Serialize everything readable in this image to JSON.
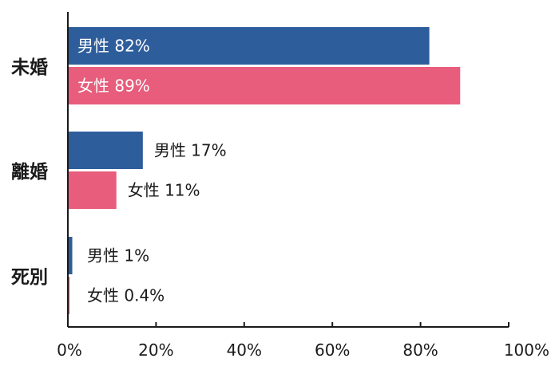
{
  "chart_data": {
    "type": "bar",
    "orientation": "horizontal",
    "categories": [
      "未婚",
      "離婚",
      "死別"
    ],
    "series": [
      {
        "name": "男性",
        "values": [
          82,
          17,
          1
        ],
        "color": "#2e5d9c",
        "labels": [
          "男性 82%",
          "男性 17%",
          "男性 1%"
        ]
      },
      {
        "name": "女性",
        "values": [
          89,
          11,
          0.4
        ],
        "color": "#e85c7c",
        "labels": [
          "女性 89%",
          "女性 11%",
          "女性 0.4%"
        ]
      }
    ],
    "xlim": [
      0,
      100
    ],
    "xticks": [
      0,
      20,
      40,
      60,
      80,
      100
    ],
    "xtick_labels": [
      "0%",
      "20%",
      "40%",
      "60%",
      "80%",
      "100%"
    ],
    "grid": false,
    "legend": "none",
    "inside_label_color": "#ffffff",
    "outside_label_color": "#1a1a1a"
  }
}
